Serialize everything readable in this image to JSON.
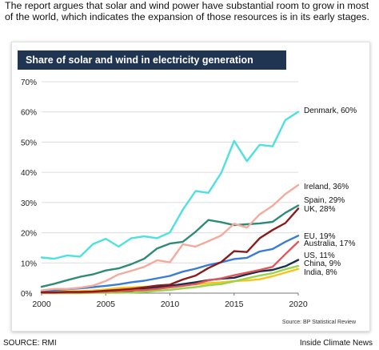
{
  "caption": "The report argues that solar and wind power have substantial room to grow in most of the world, which indicates the expansion of those resources is in its early stages.",
  "footer": {
    "source": "SOURCE: RMI",
    "brand": "Inside Climate News"
  },
  "chart_data": {
    "type": "line",
    "title": "Share of solar and wind in electricity generation",
    "source_note": "Source: BP Statistical Review",
    "xlabel": "",
    "ylabel": "",
    "xlim": [
      2000,
      2020
    ],
    "ylim": [
      0,
      70
    ],
    "y_unit": "%",
    "grid": "horizontal",
    "legend": "inline labels at line ends",
    "x_ticks": [
      "2000",
      "2005",
      "2010",
      "2015",
      "2020"
    ],
    "y_ticks": [
      "0%",
      "10%",
      "20%",
      "30%",
      "40%",
      "50%",
      "60%",
      "70%"
    ],
    "x": [
      2000,
      2001,
      2002,
      2003,
      2004,
      2005,
      2006,
      2007,
      2008,
      2009,
      2010,
      2011,
      2012,
      2013,
      2014,
      2015,
      2016,
      2017,
      2018,
      2019,
      2020
    ],
    "series": [
      {
        "name": "Denmark",
        "end_label": "Denmark, 60%",
        "color": "#4fe0e0",
        "values": [
          11.8,
          11.4,
          12.5,
          12.1,
          16.2,
          18.0,
          15.4,
          18.2,
          18.8,
          18.2,
          20.1,
          27.6,
          33.8,
          33.2,
          39.8,
          50.4,
          43.7,
          49.1,
          48.6,
          57.3,
          60.0
        ]
      },
      {
        "name": "Ireland",
        "end_label": "Ireland, 36%",
        "color": "#f4aa9c",
        "values": [
          0.9,
          1.4,
          1.4,
          1.8,
          2.5,
          4.0,
          6.2,
          7.4,
          8.7,
          10.9,
          10.2,
          16.2,
          15.4,
          17.2,
          19.1,
          23.0,
          21.7,
          26.1,
          28.9,
          32.8,
          35.8
        ]
      },
      {
        "name": "Spain",
        "end_label": "Spain, 29%",
        "color": "#2e8b78",
        "values": [
          2.1,
          3.1,
          4.3,
          5.4,
          6.2,
          7.5,
          8.2,
          9.6,
          11.4,
          14.8,
          16.4,
          17.0,
          20.3,
          24.2,
          23.5,
          22.5,
          22.8,
          23.1,
          23.6,
          26.6,
          29.0
        ]
      },
      {
        "name": "UK",
        "end_label": "UK, 28%",
        "color": "#8b1a1a",
        "values": [
          0.3,
          0.3,
          0.4,
          0.4,
          0.5,
          0.8,
          1.1,
          1.4,
          1.9,
          2.5,
          2.8,
          4.5,
          5.8,
          8.3,
          10.3,
          13.9,
          13.6,
          18.2,
          20.9,
          23.2,
          28.0
        ]
      },
      {
        "name": "EU",
        "end_label": "EU, 19%",
        "color": "#3a7bd5",
        "values": [
          0.8,
          1.0,
          1.3,
          1.6,
          2.0,
          2.4,
          2.9,
          3.6,
          4.1,
          4.9,
          5.7,
          7.1,
          8.1,
          9.3,
          10.2,
          11.3,
          11.7,
          13.8,
          14.6,
          17.0,
          19.0
        ]
      },
      {
        "name": "Australia",
        "end_label": "Australia, 17%",
        "color": "#e4555a",
        "values": [
          0.1,
          0.1,
          0.2,
          0.3,
          0.3,
          0.5,
          0.7,
          0.9,
          1.0,
          1.4,
          1.9,
          2.4,
          3.0,
          4.2,
          4.9,
          5.9,
          6.8,
          7.7,
          8.7,
          12.9,
          17.0
        ]
      },
      {
        "name": "US",
        "end_label": "US, 11%",
        "color": "#1c2f4a",
        "values": [
          0.2,
          0.2,
          0.3,
          0.3,
          0.4,
          0.5,
          0.7,
          0.8,
          1.4,
          1.9,
          2.4,
          3.0,
          3.6,
          4.3,
          4.8,
          5.1,
          6.2,
          7.2,
          7.7,
          8.9,
          11.0
        ]
      },
      {
        "name": "China",
        "end_label": "China, 9%",
        "color": "#9bd34a",
        "values": [
          0.0,
          0.0,
          0.0,
          0.0,
          0.1,
          0.1,
          0.1,
          0.2,
          0.4,
          0.8,
          1.1,
          1.6,
          2.0,
          2.6,
          3.0,
          3.9,
          4.9,
          5.8,
          6.6,
          7.9,
          9.0
        ]
      },
      {
        "name": "India",
        "end_label": "India, 8%",
        "color": "#f5c518",
        "values": [
          0.4,
          0.5,
          0.6,
          0.7,
          0.9,
          1.2,
          1.7,
          1.9,
          2.1,
          2.3,
          2.4,
          2.8,
          2.9,
          3.3,
          3.6,
          4.0,
          4.2,
          4.6,
          5.6,
          6.8,
          8.0
        ]
      }
    ]
  }
}
